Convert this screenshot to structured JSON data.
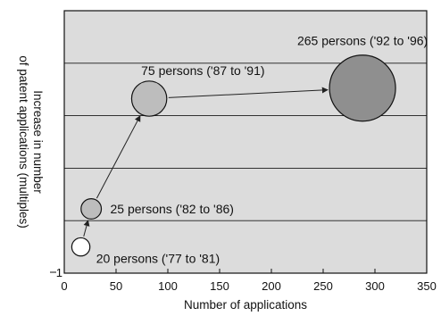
{
  "chart_data": {
    "type": "scatter",
    "xlabel": "Number of applications",
    "ylabel_line1": "Increase in number",
    "ylabel_line2": "of patent applications (multiples)",
    "x_ticks": [
      "0",
      "50",
      "100",
      "150",
      "200",
      "250",
      "300",
      "350"
    ],
    "y_tick_label": "1",
    "xlim": [
      0,
      350
    ],
    "grid": true,
    "background_color": "#dcdcdc",
    "bubbles": [
      {
        "label": "20 persons ('77 to '81)",
        "x": 16,
        "level": 0.1,
        "size": 20,
        "fill": "#ffffff"
      },
      {
        "label": "25 persons ('82 to '86)",
        "x": 26,
        "level": 0.245,
        "size": 25,
        "fill": "#bdbdbd"
      },
      {
        "label": "75 persons ('87 to '91)",
        "x": 82,
        "level": 0.665,
        "size": 75,
        "fill": "#bdbdbd"
      },
      {
        "label": "265 persons ('92 to '96)",
        "x": 288,
        "level": 0.705,
        "size": 265,
        "fill": "#8f8f8f"
      }
    ]
  }
}
